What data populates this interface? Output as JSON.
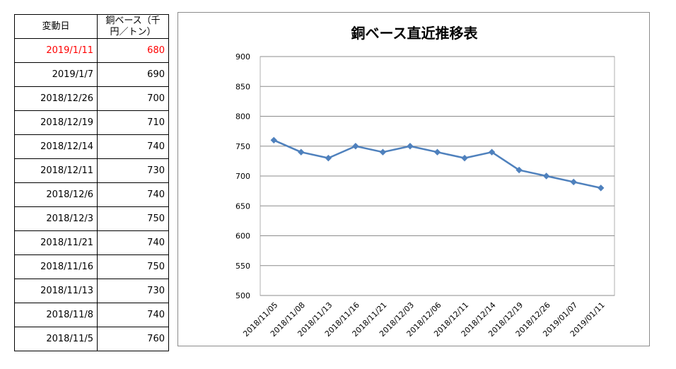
{
  "table": {
    "header": {
      "date": "変動日",
      "price": "銅ベース（千円／トン）"
    },
    "rows": [
      {
        "date": "2019/1/11",
        "price": "680",
        "highlight": true
      },
      {
        "date": "2019/1/7",
        "price": "690"
      },
      {
        "date": "2018/12/26",
        "price": "700"
      },
      {
        "date": "2018/12/19",
        "price": "710"
      },
      {
        "date": "2018/12/14",
        "price": "740"
      },
      {
        "date": "2018/12/11",
        "price": "730"
      },
      {
        "date": "2018/12/6",
        "price": "740"
      },
      {
        "date": "2018/12/3",
        "price": "750"
      },
      {
        "date": "2018/11/21",
        "price": "740"
      },
      {
        "date": "2018/11/16",
        "price": "750"
      },
      {
        "date": "2018/11/13",
        "price": "730"
      },
      {
        "date": "2018/11/8",
        "price": "740"
      },
      {
        "date": "2018/11/5",
        "price": "760"
      }
    ],
    "highlight_color": "#ff0000"
  },
  "chart_data": {
    "type": "line",
    "title": "銅ベース直近推移表",
    "xlabel": "",
    "ylabel": "",
    "categories": [
      "2018/11/05",
      "2018/11/08",
      "2018/11/13",
      "2018/11/16",
      "2018/11/21",
      "2018/12/03",
      "2018/12/06",
      "2018/12/11",
      "2018/12/14",
      "2018/12/19",
      "2018/12/26",
      "2019/01/07",
      "2019/01/11"
    ],
    "series": [
      {
        "values": [
          760,
          740,
          730,
          750,
          740,
          750,
          740,
          730,
          740,
          710,
          700,
          690,
          680
        ],
        "color": "#4f81bd",
        "marker": "diamond"
      }
    ],
    "ylim": [
      500,
      900
    ],
    "yticks": [
      500,
      550,
      600,
      650,
      700,
      750,
      800,
      850,
      900
    ],
    "grid": "horizontal",
    "legend": "none"
  }
}
